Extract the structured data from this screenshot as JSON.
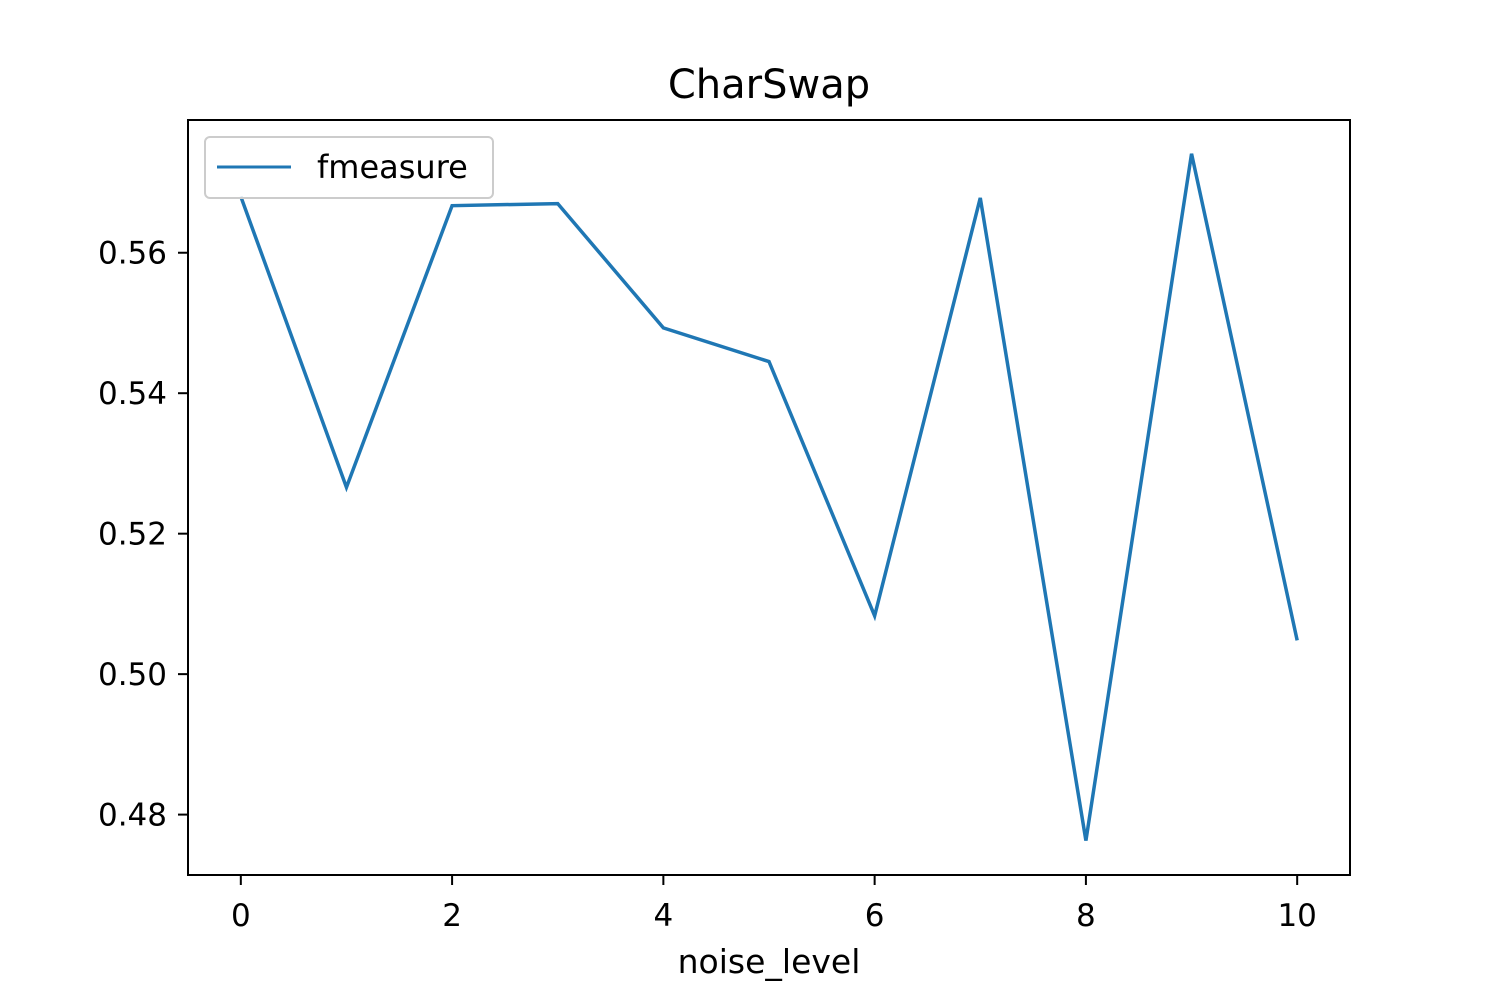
{
  "chart_data": {
    "type": "line",
    "title": "CharSwap",
    "xlabel": "noise_level",
    "ylabel": "",
    "x": [
      0,
      1,
      2,
      3,
      4,
      5,
      6,
      7,
      8,
      9,
      10
    ],
    "xticks": [
      0,
      2,
      4,
      6,
      8,
      10
    ],
    "xtick_labels": [
      "0",
      "2",
      "4",
      "6",
      "8",
      "10"
    ],
    "yticks": [
      0.48,
      0.5,
      0.52,
      0.54,
      0.56
    ],
    "ytick_labels": [
      "0.48",
      "0.50",
      "0.52",
      "0.54",
      "0.56"
    ],
    "xlim": [
      -0.5,
      10.5
    ],
    "ylim": [
      0.4714,
      0.5789
    ],
    "grid": false,
    "legend_position": "upper-left",
    "series": [
      {
        "name": "fmeasure",
        "color": "#1f77b4",
        "values": [
          0.568,
          0.5266,
          0.5667,
          0.567,
          0.5493,
          0.5445,
          0.5083,
          0.5678,
          0.4763,
          0.5741,
          0.5048
        ]
      }
    ]
  }
}
